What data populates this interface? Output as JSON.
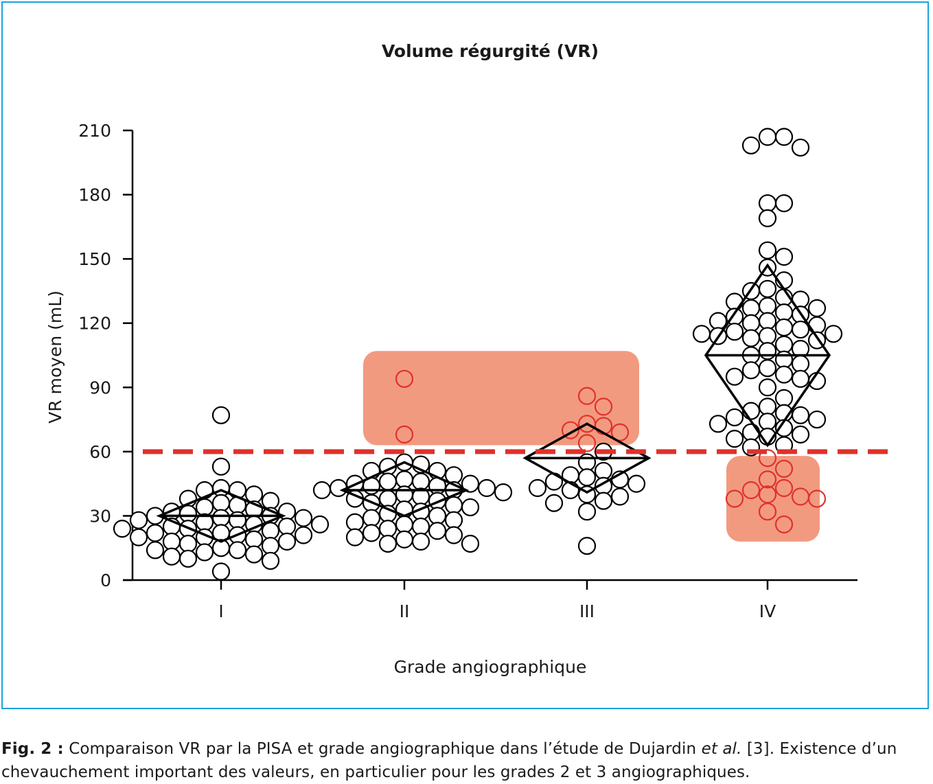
{
  "chart_data": {
    "type": "scatter",
    "title": "Volume régurgité (VR)",
    "xlabel": "Grade angiographique",
    "ylabel": "VR moyen (mL)",
    "categories": [
      "I",
      "II",
      "III",
      "IV"
    ],
    "ylim": [
      0,
      210
    ],
    "yticks": [
      0,
      30,
      60,
      90,
      120,
      150,
      180,
      210
    ],
    "threshold": 60,
    "grid": false,
    "colors": {
      "threshold": "#e0312b",
      "highlight_box": "#f29a80",
      "highlight_point": "#e0312b",
      "point": "#000000",
      "diamond": "#000000"
    },
    "highlight_boxes": [
      {
        "category_from": "II",
        "category_to": "III",
        "y_from": 63,
        "y_to": 107
      },
      {
        "category_from": "IV",
        "category_to": "IV",
        "y_from": 18,
        "y_to": 58
      }
    ],
    "series": [
      {
        "category": "I",
        "mean": 30,
        "ci": [
          18,
          42
        ],
        "points": [
          77,
          53,
          43,
          42,
          42,
          40,
          38,
          37,
          36,
          35,
          34,
          33,
          32,
          32,
          31,
          30,
          30,
          29,
          29,
          28,
          28,
          27,
          26,
          26,
          25,
          25,
          24,
          24,
          23,
          22,
          22,
          21,
          21,
          20,
          20,
          19,
          18,
          18,
          17,
          16,
          15,
          14,
          14,
          13,
          12,
          11,
          10,
          9,
          4
        ],
        "highlighted": []
      },
      {
        "category": "II",
        "mean": 42,
        "ci": [
          30,
          55
        ],
        "points": [
          55,
          54,
          53,
          51,
          51,
          49,
          47,
          46,
          46,
          45,
          45,
          44,
          44,
          43,
          43,
          42,
          42,
          41,
          40,
          39,
          38,
          38,
          37,
          36,
          35,
          34,
          33,
          32,
          31,
          30,
          29,
          28,
          27,
          26,
          25,
          24,
          23,
          22,
          21,
          20,
          19,
          18,
          17,
          17
        ],
        "highlighted": [
          94,
          68
        ]
      },
      {
        "category": "III",
        "mean": 57,
        "ci": [
          41,
          73
        ],
        "points": [
          60,
          55,
          51,
          49,
          48,
          47,
          46,
          45,
          44,
          43,
          42,
          40,
          39,
          37,
          36,
          32,
          16
        ],
        "highlighted": [
          86,
          81,
          73,
          72,
          70,
          69,
          64
        ]
      },
      {
        "category": "IV",
        "mean": 105,
        "ci": [
          63,
          147
        ],
        "points": [
          207,
          207,
          203,
          202,
          176,
          176,
          169,
          154,
          151,
          146,
          140,
          136,
          135,
          132,
          131,
          130,
          128,
          127,
          127,
          125,
          124,
          123,
          121,
          121,
          120,
          119,
          118,
          117,
          116,
          115,
          115,
          114,
          114,
          113,
          112,
          110,
          108,
          107,
          105,
          103,
          101,
          99,
          98,
          96,
          95,
          94,
          93,
          90,
          85,
          81,
          79,
          78,
          77,
          76,
          75,
          74,
          73,
          71,
          69,
          68,
          67,
          66,
          63,
          62
        ],
        "highlighted": [
          57,
          52,
          47,
          43,
          42,
          40,
          39,
          38,
          38,
          32,
          26
        ]
      }
    ]
  },
  "caption": {
    "label": "Fig. 2 :",
    "text_before": " Comparaison VR par la PISA et grade angiographique dans l’étude de Dujardin ",
    "italic": "et al.",
    "text_after": " [3]. Existence d’un chevauchement important des valeurs, en particulier pour les grades 2 et 3 angiographiques."
  }
}
